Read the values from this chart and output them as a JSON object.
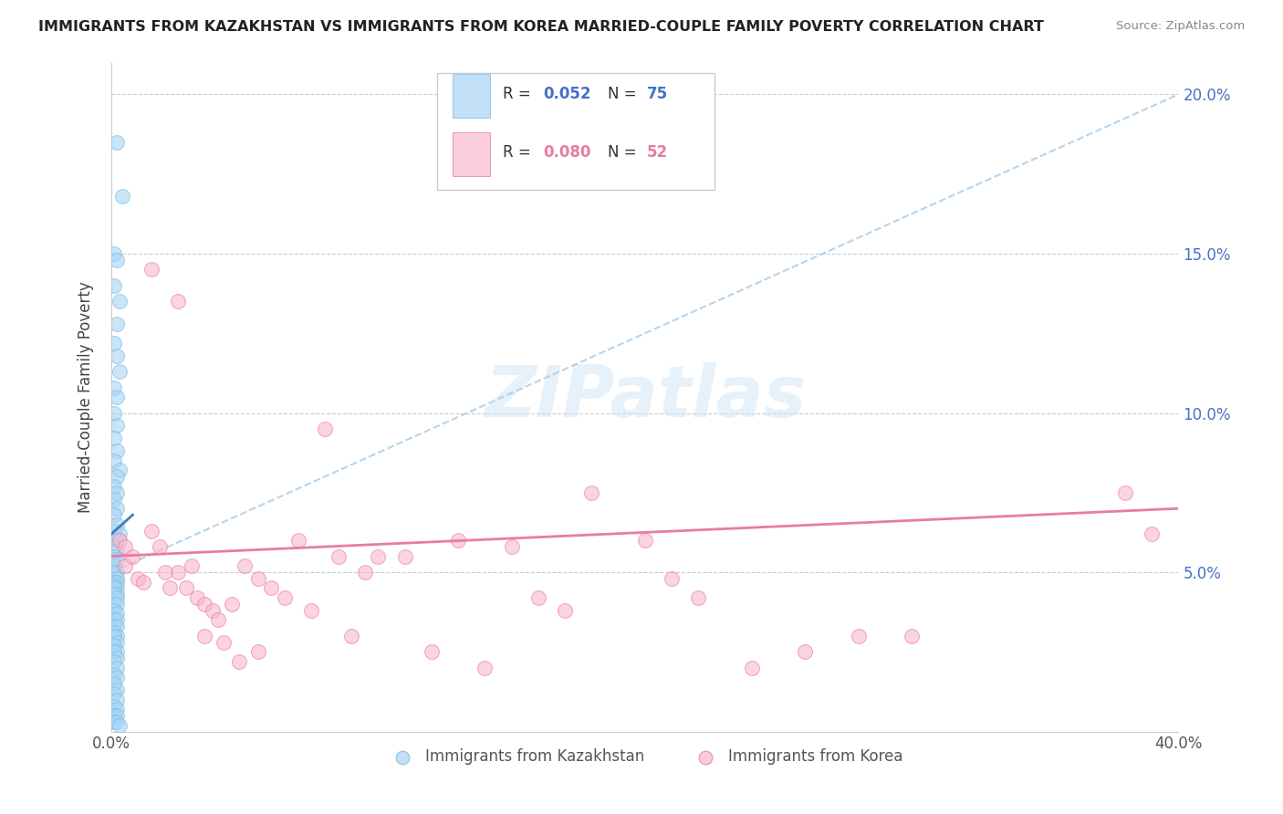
{
  "title": "IMMIGRANTS FROM KAZAKHSTAN VS IMMIGRANTS FROM KOREA MARRIED-COUPLE FAMILY POVERTY CORRELATION CHART",
  "source": "Source: ZipAtlas.com",
  "ylabel": "Married-Couple Family Poverty",
  "xlim": [
    0.0,
    0.4
  ],
  "ylim": [
    0.0,
    0.21
  ],
  "color_kaz": "#a8d4f5",
  "color_kor": "#f9b8cb",
  "color_kaz_line": "#3a7fc1",
  "color_kor_line": "#e87ca0",
  "color_kaz_dash": "#a8d4f5",
  "watermark_text": "ZIPatlas",
  "kaz_x": [
    0.002,
    0.004,
    0.001,
    0.002,
    0.001,
    0.003,
    0.002,
    0.001,
    0.002,
    0.003,
    0.001,
    0.002,
    0.001,
    0.002,
    0.001,
    0.002,
    0.001,
    0.003,
    0.002,
    0.001,
    0.002,
    0.001,
    0.002,
    0.001,
    0.002,
    0.001,
    0.003,
    0.002,
    0.001,
    0.002,
    0.001,
    0.002,
    0.001,
    0.002,
    0.001,
    0.002,
    0.001,
    0.002,
    0.001,
    0.002,
    0.001,
    0.002,
    0.001,
    0.002,
    0.001,
    0.002,
    0.001,
    0.002,
    0.001,
    0.002,
    0.001,
    0.002,
    0.001,
    0.002,
    0.001,
    0.002,
    0.001,
    0.002,
    0.001,
    0.002,
    0.001,
    0.002,
    0.001,
    0.002,
    0.001,
    0.002,
    0.001,
    0.002,
    0.001,
    0.002,
    0.001,
    0.002,
    0.001,
    0.002,
    0.003
  ],
  "kaz_y": [
    0.185,
    0.168,
    0.15,
    0.148,
    0.14,
    0.135,
    0.128,
    0.122,
    0.118,
    0.113,
    0.108,
    0.105,
    0.1,
    0.096,
    0.092,
    0.088,
    0.085,
    0.082,
    0.08,
    0.077,
    0.075,
    0.073,
    0.07,
    0.068,
    0.065,
    0.063,
    0.062,
    0.06,
    0.058,
    0.057,
    0.055,
    0.054,
    0.052,
    0.05,
    0.05,
    0.048,
    0.047,
    0.047,
    0.046,
    0.045,
    0.045,
    0.043,
    0.043,
    0.042,
    0.04,
    0.04,
    0.038,
    0.037,
    0.035,
    0.035,
    0.033,
    0.033,
    0.031,
    0.03,
    0.03,
    0.028,
    0.027,
    0.025,
    0.025,
    0.023,
    0.022,
    0.02,
    0.018,
    0.017,
    0.015,
    0.013,
    0.012,
    0.01,
    0.008,
    0.007,
    0.005,
    0.005,
    0.003,
    0.003,
    0.002
  ],
  "kor_x": [
    0.003,
    0.005,
    0.005,
    0.008,
    0.01,
    0.012,
    0.015,
    0.015,
    0.018,
    0.02,
    0.022,
    0.025,
    0.025,
    0.028,
    0.03,
    0.032,
    0.035,
    0.035,
    0.038,
    0.04,
    0.042,
    0.045,
    0.048,
    0.05,
    0.055,
    0.055,
    0.06,
    0.065,
    0.07,
    0.075,
    0.08,
    0.085,
    0.09,
    0.095,
    0.1,
    0.11,
    0.12,
    0.13,
    0.14,
    0.15,
    0.16,
    0.17,
    0.18,
    0.2,
    0.21,
    0.22,
    0.24,
    0.26,
    0.28,
    0.3,
    0.38,
    0.39
  ],
  "kor_y": [
    0.06,
    0.058,
    0.052,
    0.055,
    0.048,
    0.047,
    0.145,
    0.063,
    0.058,
    0.05,
    0.045,
    0.135,
    0.05,
    0.045,
    0.052,
    0.042,
    0.04,
    0.03,
    0.038,
    0.035,
    0.028,
    0.04,
    0.022,
    0.052,
    0.048,
    0.025,
    0.045,
    0.042,
    0.06,
    0.038,
    0.095,
    0.055,
    0.03,
    0.05,
    0.055,
    0.055,
    0.025,
    0.06,
    0.02,
    0.058,
    0.042,
    0.038,
    0.075,
    0.06,
    0.048,
    0.042,
    0.02,
    0.025,
    0.03,
    0.03,
    0.075,
    0.062
  ]
}
